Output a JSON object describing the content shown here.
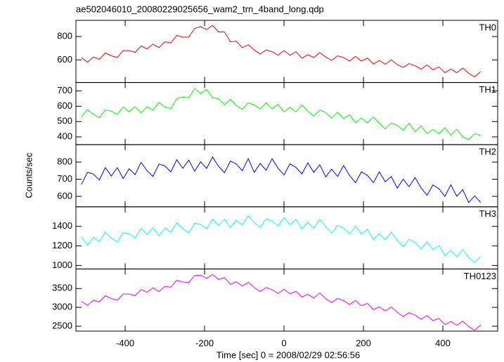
{
  "title": "ae502046010_20080229025656_wam2_trn_4band_long.qdp",
  "y_label": "Counts/sec",
  "x_label": "Time [sec] 0 = 2008/02/29 02:56:56",
  "chart_data": [
    {
      "type": "line",
      "xlim": [
        -524,
        538
      ],
      "xticks": [
        -400,
        -200,
        0,
        200,
        400
      ],
      "ylim": [
        406,
        939
      ],
      "yticks": [
        600,
        800
      ],
      "x": [
        -510,
        -495,
        -480,
        -465,
        -450,
        -435,
        -420,
        -405,
        -390,
        -375,
        -360,
        -345,
        -330,
        -315,
        -300,
        -285,
        -270,
        -255,
        -240,
        -225,
        -210,
        -195,
        -180,
        -165,
        -150,
        -135,
        -120,
        -105,
        -90,
        -75,
        -60,
        -45,
        -30,
        -15,
        0,
        15,
        30,
        45,
        60,
        75,
        90,
        105,
        120,
        135,
        150,
        165,
        180,
        195,
        210,
        225,
        240,
        255,
        270,
        285,
        300,
        315,
        330,
        345,
        360,
        375,
        390,
        405,
        420,
        435,
        450,
        465,
        480,
        495
      ],
      "series": [
        {
          "name": "TH0",
          "color": "#ff0000",
          "values": [
            620,
            580,
            625,
            605,
            660,
            635,
            620,
            680,
            680,
            665,
            720,
            695,
            735,
            705,
            755,
            745,
            810,
            795,
            795,
            870,
            885,
            860,
            895,
            840,
            840,
            755,
            760,
            705,
            730,
            685,
            650,
            685,
            670,
            640,
            680,
            640,
            670,
            615,
            645,
            620,
            662,
            625,
            595,
            635,
            620,
            590,
            630,
            590,
            615,
            565,
            595,
            563,
            600,
            560,
            535,
            568,
            550,
            520,
            557,
            515,
            540,
            490,
            520,
            490,
            530,
            485,
            455,
            500
          ]
        }
      ]
    },
    {
      "type": "line",
      "xlim": [
        -524,
        538
      ],
      "xticks": [
        -400,
        -200,
        0,
        200,
        400
      ],
      "ylim": [
        349,
        755
      ],
      "yticks": [
        400,
        500,
        600,
        700
      ],
      "x": [
        -510,
        -495,
        -480,
        -465,
        -450,
        -435,
        -420,
        -405,
        -390,
        -375,
        -360,
        -345,
        -330,
        -315,
        -300,
        -285,
        -270,
        -255,
        -240,
        -225,
        -210,
        -195,
        -180,
        -165,
        -150,
        -135,
        -120,
        -105,
        -90,
        -75,
        -60,
        -45,
        -30,
        -15,
        0,
        15,
        30,
        45,
        60,
        75,
        90,
        105,
        120,
        135,
        150,
        165,
        180,
        195,
        210,
        225,
        240,
        255,
        270,
        285,
        300,
        315,
        330,
        345,
        360,
        375,
        390,
        405,
        420,
        435,
        450,
        465,
        480,
        495
      ],
      "series": [
        {
          "name": "TH1",
          "color": "#00ff00",
          "values": [
            530,
            578,
            547,
            525,
            575,
            568,
            547,
            595,
            564,
            598,
            557,
            596,
            575,
            625,
            595,
            585,
            650,
            660,
            655,
            715,
            685,
            710,
            655,
            650,
            610,
            645,
            605,
            580,
            622,
            609,
            581,
            623,
            585,
            612,
            563,
            593,
            563,
            608,
            567,
            536,
            575,
            559,
            522,
            561,
            520,
            544,
            493,
            522,
            491,
            530,
            489,
            452,
            491,
            475,
            444,
            489,
            433,
            472,
            421,
            450,
            420,
            460,
            410,
            450,
            400,
            382,
            420,
            410
          ]
        }
      ]
    },
    {
      "type": "line",
      "xlim": [
        -524,
        538
      ],
      "xticks": [
        -400,
        -200,
        0,
        200,
        400
      ],
      "ylim": [
        539,
        902
      ],
      "yticks": [
        600,
        700,
        800
      ],
      "x": [
        -510,
        -495,
        -480,
        -465,
        -450,
        -435,
        -420,
        -405,
        -390,
        -375,
        -360,
        -345,
        -330,
        -315,
        -300,
        -285,
        -270,
        -255,
        -240,
        -225,
        -210,
        -195,
        -180,
        -165,
        -150,
        -135,
        -120,
        -105,
        -90,
        -75,
        -60,
        -45,
        -30,
        -15,
        0,
        15,
        30,
        45,
        60,
        75,
        90,
        105,
        120,
        135,
        150,
        165,
        180,
        195,
        210,
        225,
        240,
        255,
        270,
        285,
        300,
        315,
        330,
        345,
        360,
        375,
        390,
        405,
        420,
        435,
        450,
        465,
        480,
        495
      ],
      "series": [
        {
          "name": "TH2",
          "color": "#0000ff",
          "values": [
            670,
            741,
            730,
            696,
            768,
            719,
            768,
            704,
            761,
            727,
            799,
            750,
            717,
            789,
            778,
            743,
            814,
            764,
            812,
            747,
            802,
            763,
            830,
            776,
            738,
            806,
            789,
            750,
            820,
            740,
            792,
            753,
            820,
            764,
            725,
            790,
            769,
            731,
            796,
            740,
            785,
            714,
            759,
            717,
            780,
            722,
            680,
            743,
            723,
            680,
            743,
            685,
            716,
            648,
            701,
            657,
            710,
            650,
            606,
            667,
            645,
            600,
            668,
            601,
            639,
            564,
            603,
            565
          ]
        }
      ]
    },
    {
      "type": "line",
      "xlim": [
        -524,
        538
      ],
      "xticks": [
        -400,
        -200,
        0,
        200,
        400
      ],
      "ylim": [
        964,
        1600
      ],
      "yticks": [
        1000,
        1200,
        1400
      ],
      "x": [
        -510,
        -495,
        -480,
        -465,
        -450,
        -435,
        -420,
        -405,
        -390,
        -375,
        -360,
        -345,
        -330,
        -315,
        -300,
        -285,
        -270,
        -255,
        -240,
        -225,
        -210,
        -195,
        -180,
        -165,
        -150,
        -135,
        -120,
        -105,
        -90,
        -75,
        -60,
        -45,
        -30,
        -15,
        0,
        15,
        30,
        45,
        60,
        75,
        90,
        105,
        120,
        135,
        150,
        165,
        180,
        195,
        210,
        225,
        240,
        255,
        270,
        285,
        300,
        315,
        330,
        345,
        360,
        375,
        390,
        405,
        420,
        435,
        450,
        465,
        480,
        495
      ],
      "series": [
        {
          "name": "TH3",
          "color": "#00ffff",
          "values": [
            1290,
            1208,
            1286,
            1244,
            1342,
            1280,
            1238,
            1336,
            1324,
            1282,
            1380,
            1318,
            1386,
            1304,
            1382,
            1340,
            1438,
            1376,
            1334,
            1432,
            1420,
            1376,
            1472,
            1408,
            1473,
            1388,
            1462,
            1416,
            1508,
            1439,
            1390,
            1478,
            1456,
            1403,
            1490,
            1416,
            1471,
            1376,
            1440,
            1383,
            1473,
            1396,
            1330,
            1411,
            1382,
            1322,
            1402,
            1321,
            1370,
            1268,
            1326,
            1263,
            1340,
            1256,
            1192,
            1268,
            1234,
            1170,
            1245,
            1160,
            1205,
            1100,
            1155,
            1090,
            1165,
            1080,
            1030,
            1090
          ]
        }
      ]
    },
    {
      "type": "line",
      "xlim": [
        -524,
        538
      ],
      "xticks": [
        -400,
        -200,
        0,
        200,
        400
      ],
      "ylim": [
        2370,
        4019
      ],
      "yticks": [
        2500,
        3000,
        3500
      ],
      "x": [
        -510,
        -495,
        -480,
        -465,
        -450,
        -435,
        -420,
        -405,
        -390,
        -375,
        -360,
        -345,
        -330,
        -315,
        -300,
        -285,
        -270,
        -255,
        -240,
        -225,
        -210,
        -195,
        -180,
        -165,
        -150,
        -135,
        -120,
        -105,
        -90,
        -75,
        -60,
        -45,
        -30,
        -15,
        0,
        15,
        30,
        45,
        60,
        75,
        90,
        105,
        120,
        135,
        150,
        165,
        180,
        195,
        210,
        225,
        240,
        255,
        270,
        285,
        300,
        315,
        330,
        345,
        360,
        375,
        390,
        405,
        420,
        435,
        450,
        465,
        480,
        495
      ],
      "series": [
        {
          "name": "TH0123",
          "color": "#ff00ff",
          "values": [
            3160,
            3055,
            3190,
            3145,
            3310,
            3235,
            3190,
            3355,
            3355,
            3310,
            3475,
            3400,
            3520,
            3420,
            3560,
            3535,
            3720,
            3675,
            3660,
            3845,
            3855,
            3770,
            3875,
            3740,
            3790,
            3615,
            3680,
            3565,
            3665,
            3525,
            3420,
            3525,
            3470,
            3370,
            3485,
            3360,
            3430,
            3270,
            3350,
            3250,
            3385,
            3230,
            3130,
            3240,
            3180,
            3075,
            3180,
            3045,
            3105,
            2940,
            3015,
            2910,
            3010,
            2870,
            2760,
            2860,
            2795,
            2685,
            2785,
            2650,
            2710,
            2545,
            2625,
            2525,
            2635,
            2490,
            2395,
            2530
          ]
        }
      ]
    }
  ]
}
